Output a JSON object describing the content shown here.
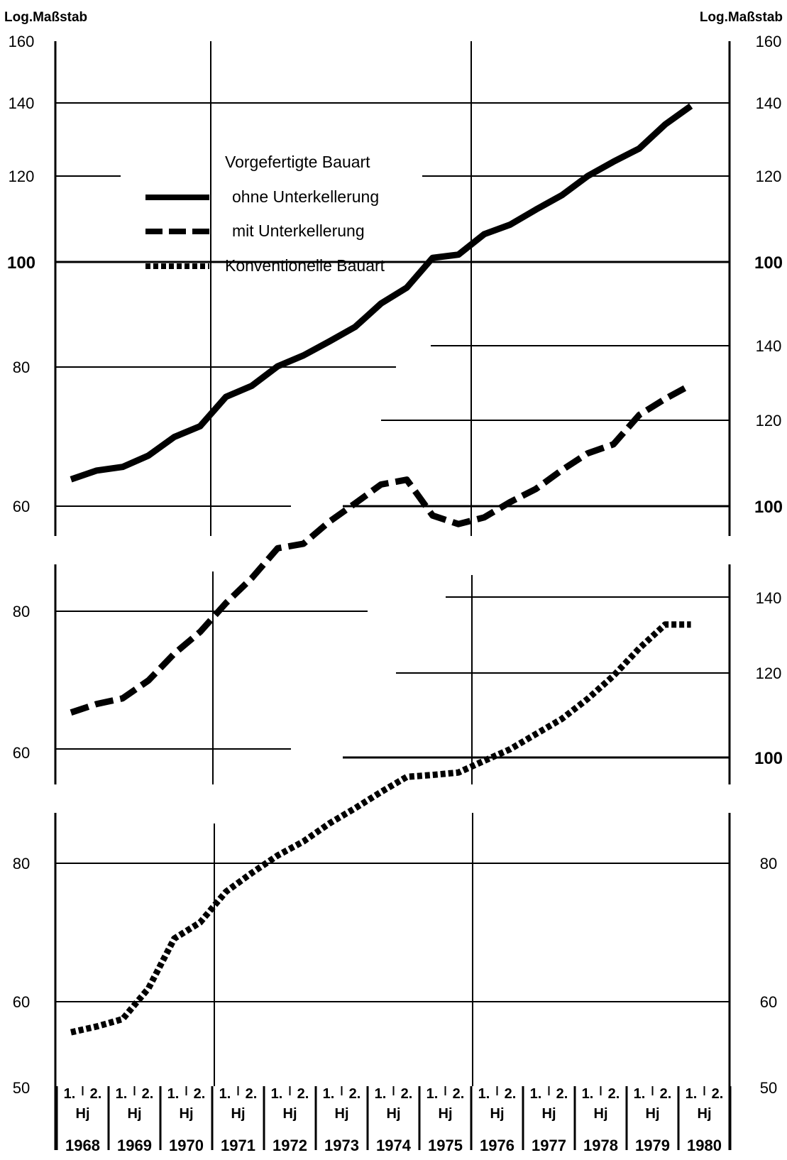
{
  "chart_data": {
    "type": "line",
    "scale": "log",
    "left_axis_title": "Log.Maßstab",
    "right_axis_title": "Log.Maßstab",
    "legend": {
      "heading": "Vorgefertigte Bauart",
      "items": [
        {
          "label": "ohne Unterkellerung",
          "style": "solid"
        },
        {
          "label": "mit Unterkellerung",
          "style": "dashed"
        },
        {
          "label": "Konventionelle Bauart",
          "style": "dotted"
        }
      ]
    },
    "x_axis": {
      "half_year_labels": [
        "1.",
        "2."
      ],
      "half_year_unit": "Hj",
      "years": [
        "1968",
        "1969",
        "1970",
        "1971",
        "1972",
        "1973",
        "1974",
        "1975",
        "1976",
        "1977",
        "1978",
        "1979",
        "1980"
      ]
    },
    "x": [
      "1968 1.",
      "1968 2.",
      "1969 1.",
      "1969 2.",
      "1970 1.",
      "1970 2.",
      "1971 1.",
      "1971 2.",
      "1972 1.",
      "1972 2.",
      "1973 1.",
      "1973 2.",
      "1974 1.",
      "1974 2.",
      "1975 1.",
      "1975 2.",
      "1976 1.",
      "1976 2.",
      "1977 1.",
      "1977 2.",
      "1978 1.",
      "1978 2.",
      "1979 1.",
      "1979 2.",
      "1980 1."
    ],
    "panels": [
      {
        "series_name": "ohne Unterkellerung",
        "style": "solid",
        "left_ticks": [
          "160",
          "140",
          "120",
          "100",
          "80",
          "60"
        ],
        "right_ticks": [
          "160",
          "140",
          "120",
          "100"
        ],
        "values": [
          62.5,
          63.7,
          64.2,
          65.8,
          68.5,
          70.1,
          74.7,
          76.5,
          79.8,
          81.7,
          84.2,
          86.9,
          91.4,
          94.6,
          100.9,
          101.6,
          106.2,
          108.4,
          112.0,
          115.5,
          120.4,
          124.2,
          127.8,
          134.6,
          140.1
        ]
      },
      {
        "series_name": "mit Unterkellerung",
        "style": "dashed",
        "left_ticks": [
          "80",
          "60"
        ],
        "right_ticks": [
          "140",
          "120",
          "100"
        ],
        "values": [
          64.0,
          65.2,
          66.0,
          68.6,
          72.7,
          76.2,
          81.1,
          85.6,
          91.3,
          92.2,
          96.7,
          100.6,
          104.8,
          105.9,
          98.0,
          96.2,
          97.6,
          100.9,
          103.8,
          108.1,
          112.1,
          114.3,
          121.8,
          126.1,
          130.0
        ]
      },
      {
        "series_name": "Konventionelle Bauart",
        "style": "dotted",
        "left_ticks": [
          "80",
          "60",
          "50"
        ],
        "right_ticks": [
          "140",
          "120",
          "100",
          "80",
          "60",
          "50"
        ],
        "values": [
          55.2,
          55.9,
          56.8,
          60.7,
          67.6,
          70.0,
          74.8,
          77.9,
          80.9,
          83.4,
          86.7,
          89.6,
          92.8,
          95.9,
          96.3,
          96.8,
          99.3,
          101.8,
          105.2,
          108.7,
          113.5,
          119.3,
          126.6,
          133.3,
          133.3
        ]
      }
    ]
  }
}
